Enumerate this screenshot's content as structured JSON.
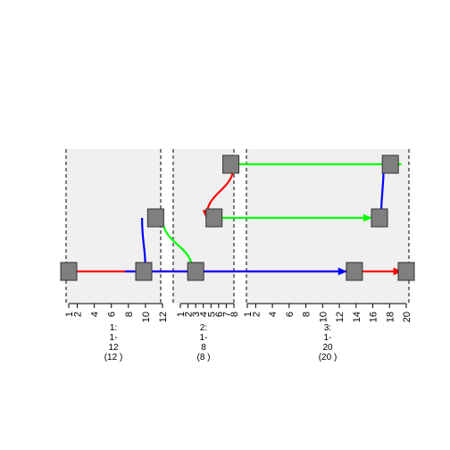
{
  "colors": {
    "panel_bg": "#f0f0f0",
    "box_fill": "#7f7f7f",
    "box_stroke": "#333333",
    "red": "#ff0000",
    "green": "#00ff00",
    "blue": "#0000ff"
  },
  "panels": [
    {
      "id": "1",
      "range": [
        1,
        12
      ],
      "ticks": [
        1,
        2,
        4,
        6,
        8,
        10,
        12
      ],
      "tick_labels": [
        "1",
        "2",
        "4",
        "6",
        "8",
        "10",
        "12"
      ],
      "caption_lines": [
        "1:",
        "1-",
        "12",
        "(12 )"
      ]
    },
    {
      "id": "2",
      "range": [
        1,
        8
      ],
      "ticks": [
        1,
        2,
        3,
        4,
        5,
        6,
        7,
        8
      ],
      "tick_labels": [
        "1",
        "2",
        "3",
        "4",
        "5",
        "6",
        "7",
        "8"
      ],
      "caption_lines": [
        "2:",
        "1-",
        "8",
        "(8 )"
      ]
    },
    {
      "id": "3",
      "range": [
        1,
        20
      ],
      "ticks": [
        1,
        2,
        4,
        6,
        8,
        10,
        12,
        14,
        16,
        18,
        20
      ],
      "tick_labels": [
        "1",
        "2",
        "4",
        "6",
        "8",
        "10",
        "12",
        "14",
        "16",
        "18",
        "20"
      ],
      "caption_lines": [
        "3:",
        "1-",
        "20",
        "(20 )"
      ]
    }
  ],
  "rows": [
    "bottom",
    "middle",
    "top"
  ],
  "boxes": [
    {
      "panel": 0,
      "pos": 1,
      "row": 0
    },
    {
      "panel": 0,
      "pos": 9.8,
      "row": 0
    },
    {
      "panel": 0,
      "pos": 11.2,
      "row": 1
    },
    {
      "panel": 1,
      "pos": 3.0,
      "row": 0
    },
    {
      "panel": 1,
      "pos": 5.4,
      "row": 1
    },
    {
      "panel": 1,
      "pos": 7.6,
      "row": 2
    },
    {
      "panel": 2,
      "pos": 13.8,
      "row": 0
    },
    {
      "panel": 2,
      "pos": 20,
      "row": 0
    },
    {
      "panel": 2,
      "pos": 16.8,
      "row": 1
    },
    {
      "panel": 2,
      "pos": 18.1,
      "row": 2
    }
  ],
  "links": [
    {
      "color": "red",
      "from": {
        "panel": 0,
        "pos": 1.7,
        "row": 0
      },
      "to": {
        "panel": 2,
        "pos": 19.4,
        "row": 0
      },
      "arrow": true
    },
    {
      "color": "blue",
      "from": {
        "panel": 0,
        "pos": 7.6,
        "row": 0
      },
      "to": {
        "panel": 2,
        "pos": 12.8,
        "row": 0
      },
      "arrow": true
    },
    {
      "color": "blue",
      "from": {
        "panel": 0,
        "pos": 9.6,
        "row": 1
      },
      "to": {
        "panel": 0,
        "pos": 10.0,
        "row": 0
      },
      "arrow": false
    },
    {
      "color": "green",
      "from": {
        "panel": 0,
        "pos": 12,
        "row": 1
      },
      "to": {
        "panel": 1,
        "pos": 2.6,
        "row": 0
      },
      "arrow": false
    },
    {
      "color": "red",
      "from": {
        "panel": 1,
        "pos": 8,
        "row": 2
      },
      "to": {
        "panel": 1,
        "pos": 4.4,
        "row": 1
      },
      "arrow": true
    },
    {
      "color": "green",
      "from": {
        "panel": 1,
        "pos": 6.2,
        "row": 1
      },
      "to": {
        "panel": 2,
        "pos": 15.8,
        "row": 1
      },
      "arrow": true
    },
    {
      "color": "green",
      "from": {
        "panel": 1,
        "pos": 7.0,
        "row": 2
      },
      "to": {
        "panel": 2,
        "pos": 19.4,
        "row": 2
      },
      "arrow": true
    },
    {
      "color": "blue",
      "from": {
        "panel": 2,
        "pos": 17.3,
        "row": 2
      },
      "to": {
        "panel": 2,
        "pos": 17.0,
        "row": 1
      },
      "arrow": true
    }
  ]
}
